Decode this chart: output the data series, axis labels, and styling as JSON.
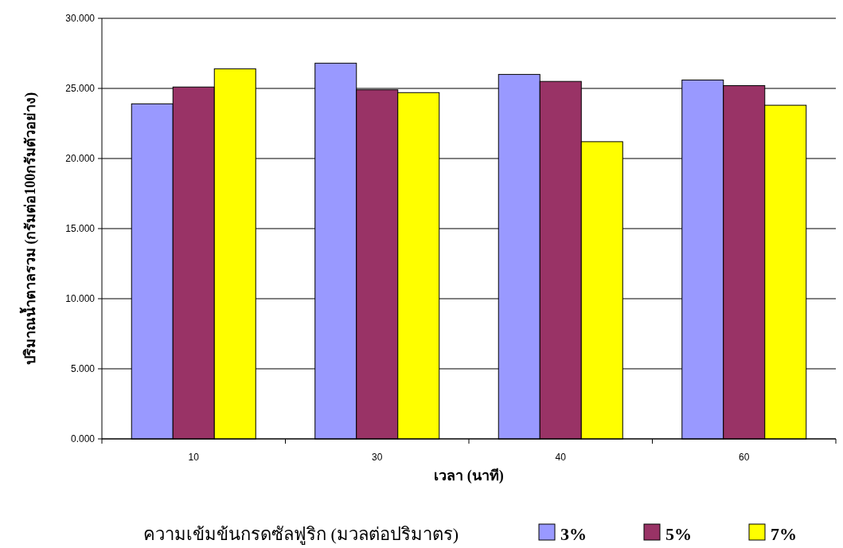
{
  "chart_data": {
    "type": "bar",
    "xlabel": "เวลา (นาที)",
    "ylabel": "ปริมาณน้ำตาลรวม (กรัมต่อ100กรัมตัวอย่าง)",
    "legend_title": "ความเข้มข้นกรดซัลฟูริก (มวลต่อปริมาตร)",
    "categories": [
      "10",
      "30",
      "40",
      "60"
    ],
    "series": [
      {
        "name": "3%",
        "color": "#9999ff",
        "values": [
          23.9,
          26.8,
          26.0,
          25.6
        ]
      },
      {
        "name": "5%",
        "color": "#993366",
        "values": [
          25.1,
          24.9,
          25.5,
          25.2
        ]
      },
      {
        "name": "7%",
        "color": "#ffff00",
        "values": [
          26.4,
          24.7,
          21.2,
          23.8
        ]
      }
    ],
    "ylim": [
      0,
      30
    ],
    "yticks": [
      {
        "value": 0,
        "label": "0.000"
      },
      {
        "value": 5,
        "label": "5.000"
      },
      {
        "value": 10,
        "label": "10.000"
      },
      {
        "value": 15,
        "label": "15.000"
      },
      {
        "value": 20,
        "label": "20.000"
      },
      {
        "value": 25,
        "label": "25.000"
      },
      {
        "value": 30,
        "label": "30.000"
      }
    ],
    "grid": "y",
    "legend": "bottom"
  }
}
